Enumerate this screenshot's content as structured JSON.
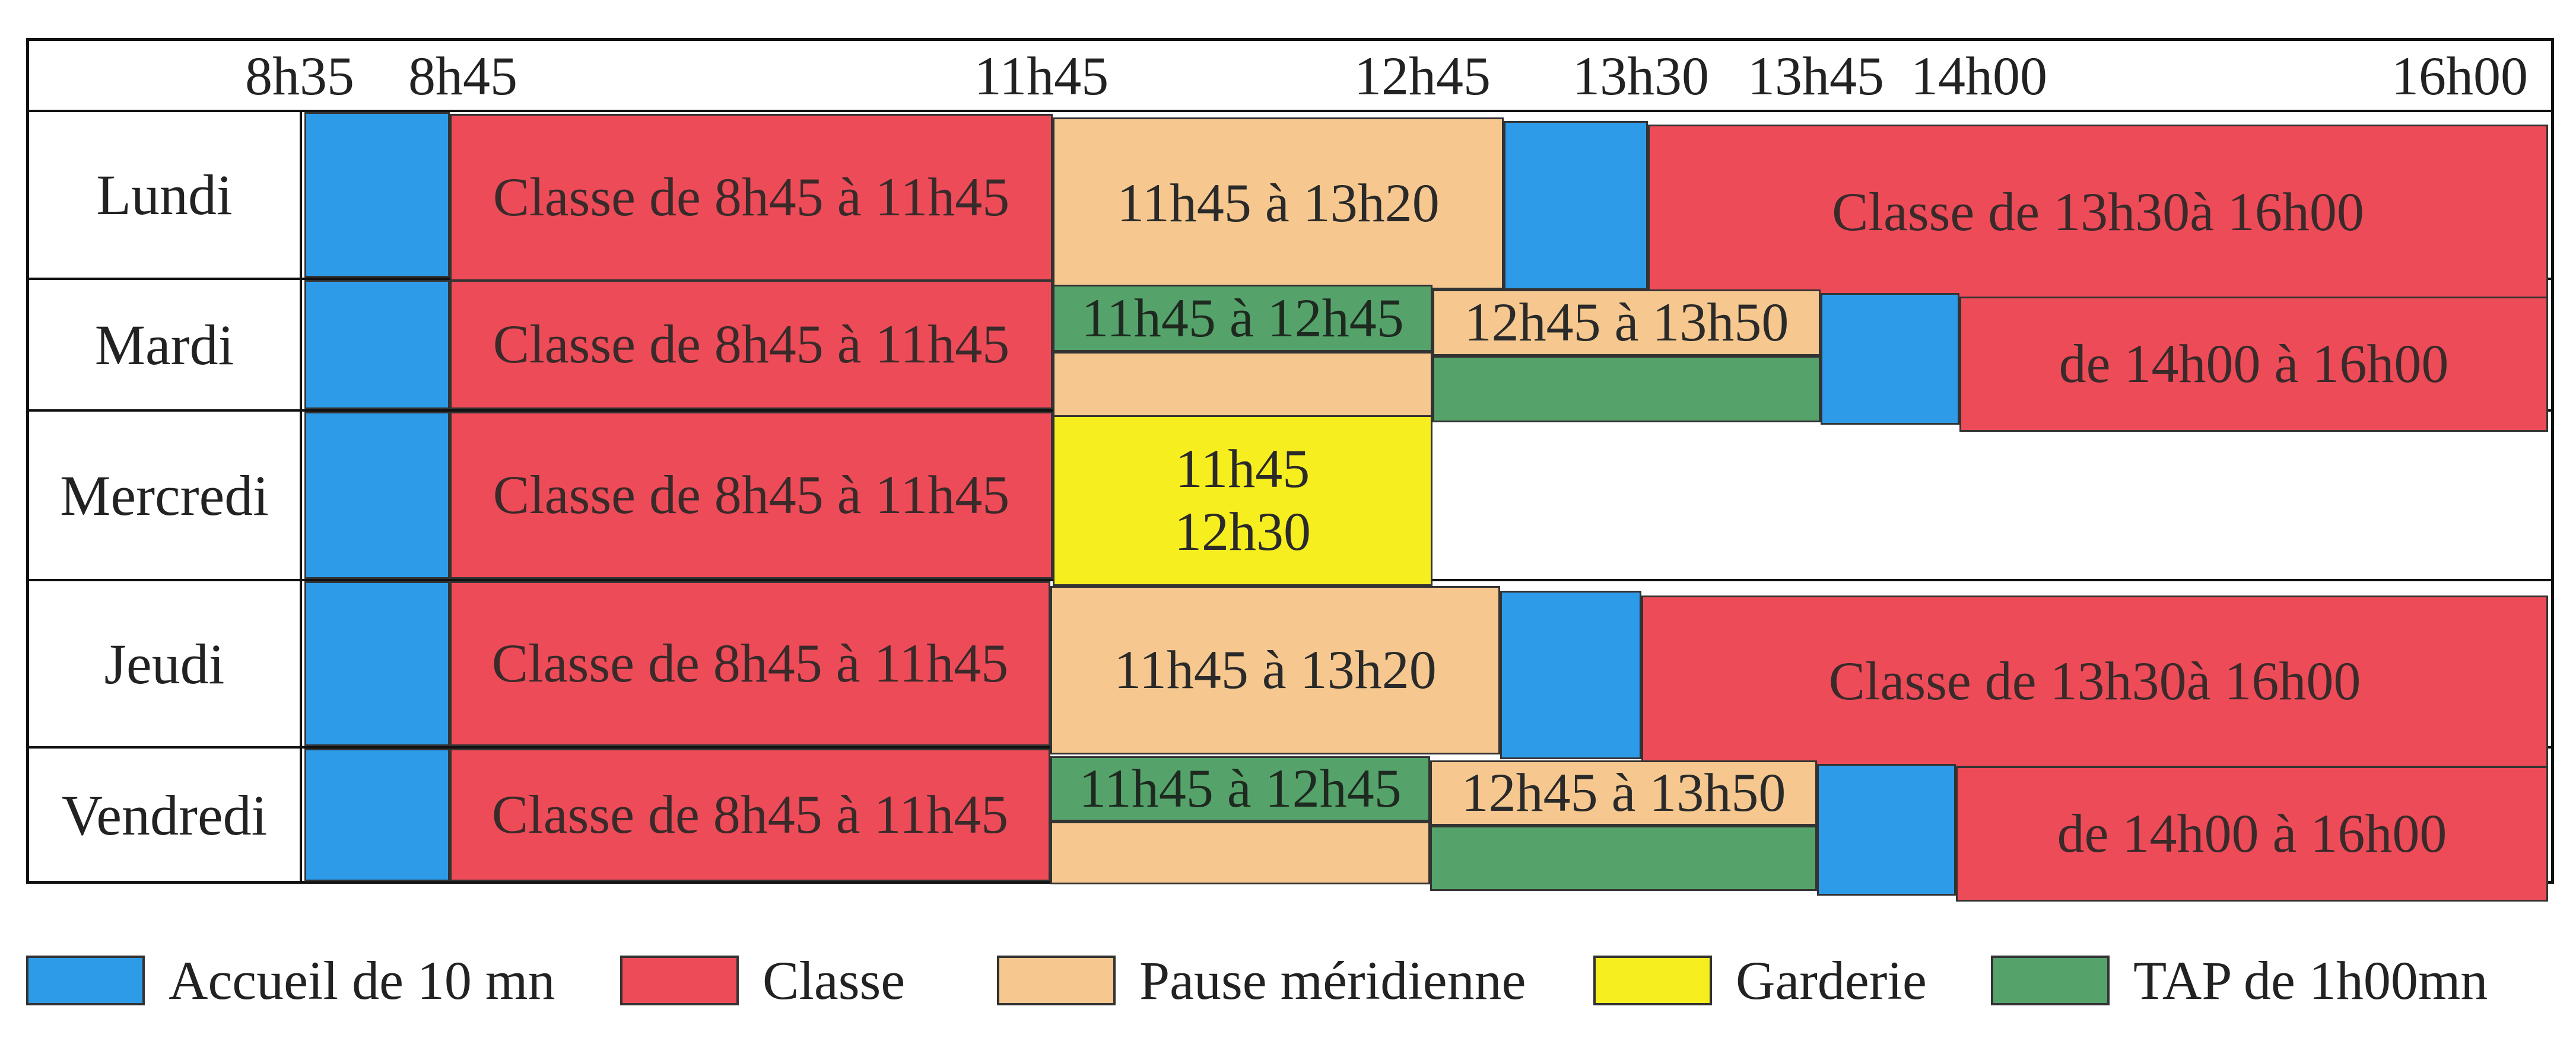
{
  "header_times": [
    "8h35",
    "8h45",
    "11h45",
    "12h45",
    "13h30",
    "13h45",
    "14h00",
    "16h00"
  ],
  "days": [
    "Lundi",
    "Mardi",
    "Mercredi",
    "Jeudi",
    "Vendredi"
  ],
  "blocks": {
    "classe_matin": "Classe de 8h45 à 11h45",
    "pause_lundi_jeudi": "11h45 à 13h20",
    "classe_aprem_long": "Classe de 13h30à 16h00",
    "tap_midi": "11h45 à 12h45",
    "pause_midi_court": "12h45 à 13h50",
    "classe_aprem_court": "de 14h00 à 16h00",
    "garderie_line1": "11h45",
    "garderie_line2": "12h30"
  },
  "legend": [
    {
      "label": "Accueil de 10 mn",
      "color": "#2e9be8"
    },
    {
      "label": "Classe",
      "color": "#ee4b58"
    },
    {
      "label": "Pause méridienne",
      "color": "#f6c88f"
    },
    {
      "label": "Garderie",
      "color": "#f7ee1f"
    },
    {
      "label": "TAP de 1h00mn",
      "color": "#55a36b"
    }
  ]
}
